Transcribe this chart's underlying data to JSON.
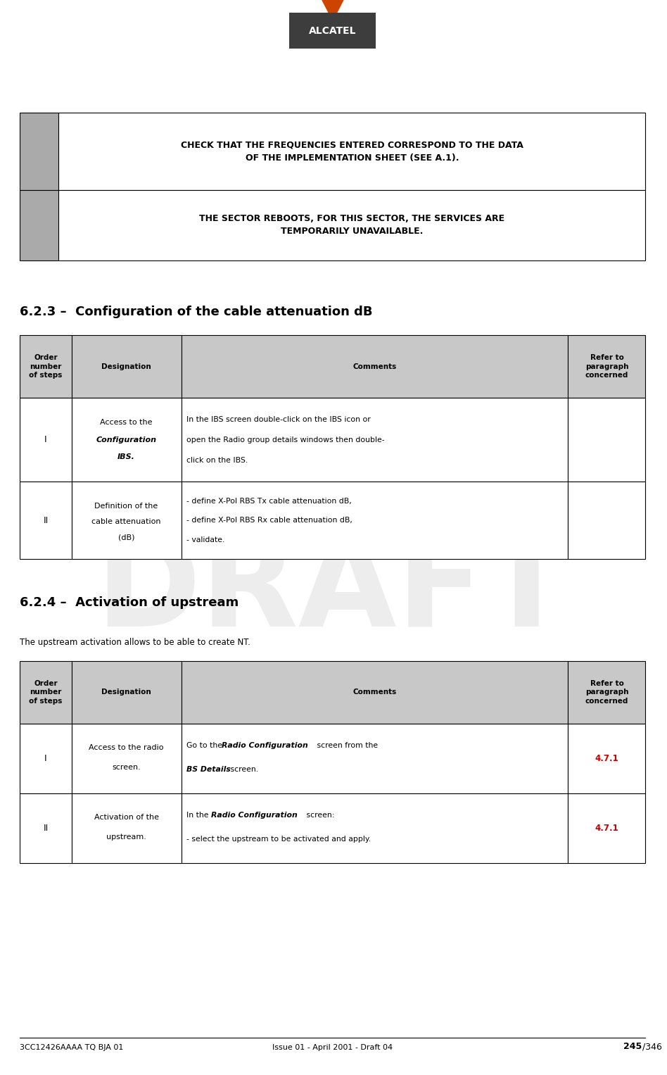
{
  "page_width": 9.48,
  "page_height": 15.27,
  "bg_color": "#ffffff",
  "footer_left": "3CC12426AAAA TQ BJA 01",
  "footer_center": "Issue 01 - April 2001 - Draft 04",
  "footer_right_bold": "245",
  "footer_right_normal": "/346",
  "alcatel_logo_text": "ALCATEL",
  "logo_bg": "#3d3d3d",
  "logo_triangle_color": "#cc4400",
  "warning1_text": "CHECK THAT THE FREQUENCIES ENTERED CORRESPOND TO THE DATA\nOF THE IMPLEMENTATION SHEET (SEE A.1).",
  "warning2_text": "THE SECTOR REBOOTS, FOR THIS SECTOR, THE SERVICES ARE\nTEMPORARILY UNAVAILABLE.",
  "warning_box_color": "#aaaaaa",
  "section1_title": "6.2.3 –  Configuration of the cable attenuation dB",
  "section2_title": "6.2.4 –  Activation of upstream",
  "section2_subtitle": "The upstream activation allows to be able to create NT.",
  "table1_headers": [
    "Order\nnumber\nof steps",
    "Designation",
    "Comments",
    "Refer to\nparagraph\nconcerned"
  ],
  "table2_headers": [
    "Order\nnumber\nof steps",
    "Designation",
    "Comments",
    "Refer to\nparagraph\nconcerned"
  ],
  "table_header_bg": "#c8c8c8",
  "table_border_color": "#000000",
  "ref_color": "#cc0000",
  "draft_watermark": "DRAFT",
  "watermark_color": "#cccccc",
  "watermark_alpha": 0.35
}
